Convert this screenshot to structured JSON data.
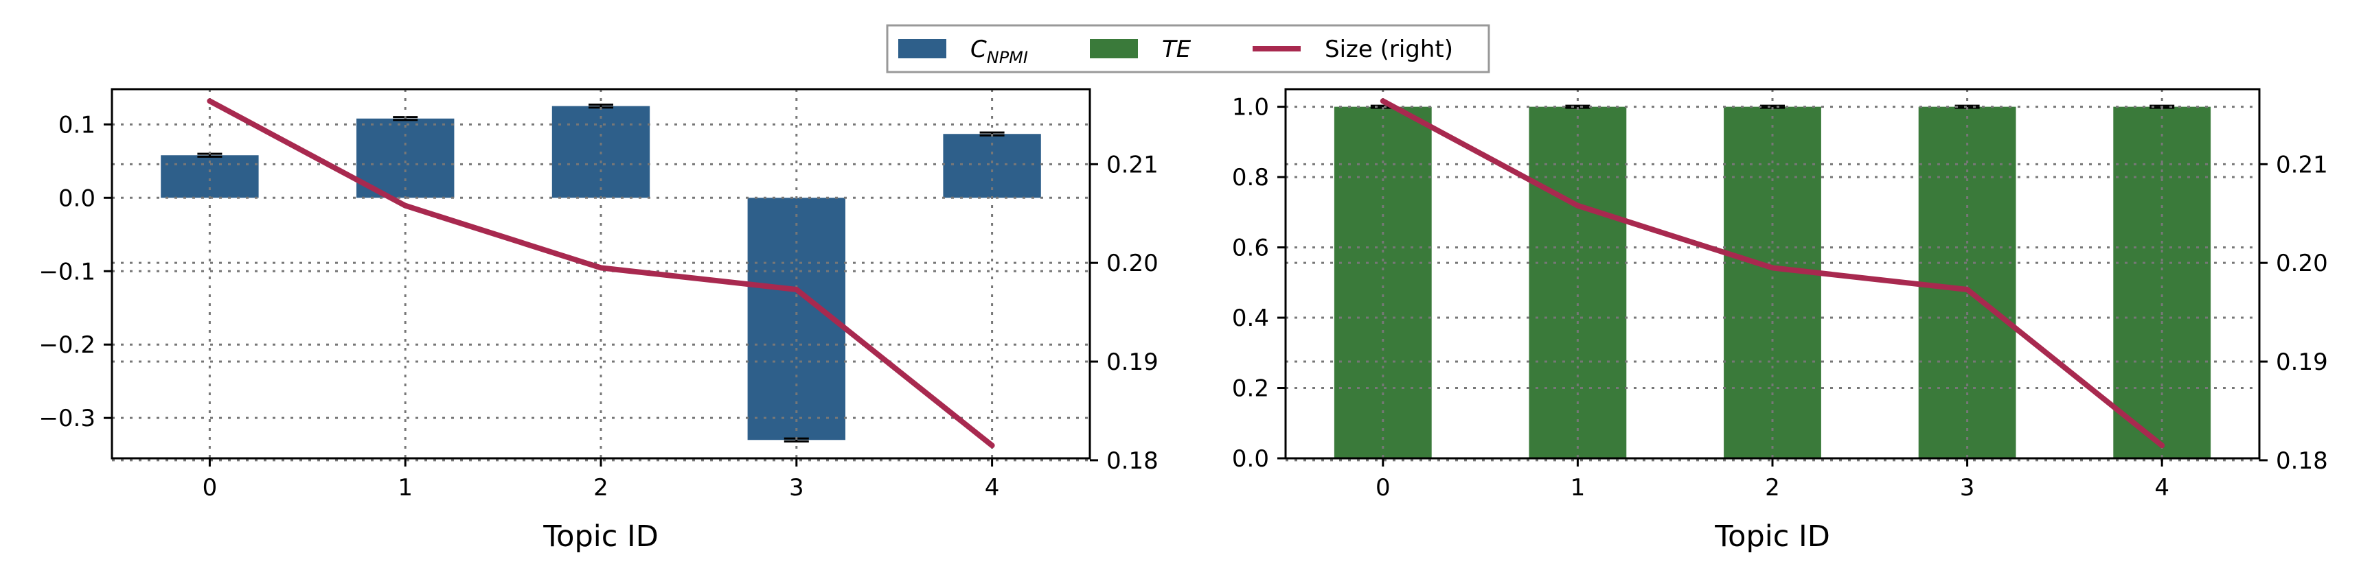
{
  "legend": {
    "placement": "top-center",
    "entries": [
      {
        "key": "cnpmi",
        "main": "C",
        "sub": "NPMI",
        "kind": "bar",
        "color": "#2e5f8a"
      },
      {
        "key": "te",
        "main": "TE",
        "sub": "",
        "kind": "bar",
        "color": "#3a7a3a"
      },
      {
        "key": "size",
        "main": "Size (right)",
        "sub": "",
        "kind": "line",
        "color": "#a8294f"
      }
    ]
  },
  "chart_data": [
    {
      "type": "bar",
      "series_key": "cnpmi",
      "bar_color": "#2e5f8a",
      "line_color": "#a8294f",
      "categories": [
        "0",
        "1",
        "2",
        "3",
        "4"
      ],
      "values": [
        0.058,
        0.108,
        0.125,
        -0.33,
        0.087
      ],
      "error": [
        0.002,
        0.002,
        0.002,
        0.002,
        0.002
      ],
      "size_values": [
        0.2164,
        0.2058,
        0.1995,
        0.1973,
        0.1815
      ],
      "xlabel": "Topic ID",
      "ylim": [
        -0.355,
        0.148
      ],
      "yticks": [
        0.1,
        0.0,
        -0.1,
        -0.2,
        -0.3
      ],
      "ytick_labels": [
        "0.1",
        "0.0",
        "−0.1",
        "−0.2",
        "−0.3"
      ],
      "y2lim": [
        0.1802,
        0.2176
      ],
      "y2ticks": [
        0.21,
        0.2,
        0.19,
        0.18
      ],
      "y2tick_labels": [
        "0.21",
        "0.20",
        "0.19",
        "0.18"
      ],
      "grid": true
    },
    {
      "type": "bar",
      "series_key": "te",
      "bar_color": "#3a7a3a",
      "line_color": "#a8294f",
      "categories": [
        "0",
        "1",
        "2",
        "3",
        "4"
      ],
      "values": [
        1.0,
        1.0,
        1.0,
        1.0,
        1.0
      ],
      "error": [
        0.003,
        0.003,
        0.003,
        0.003,
        0.003
      ],
      "size_values": [
        0.2164,
        0.2058,
        0.1995,
        0.1973,
        0.1815
      ],
      "xlabel": "Topic ID",
      "ylim": [
        0.0,
        1.05
      ],
      "yticks": [
        1.0,
        0.8,
        0.6,
        0.4,
        0.2,
        0.0
      ],
      "ytick_labels": [
        "1.0",
        "0.8",
        "0.6",
        "0.4",
        "0.2",
        "0.0"
      ],
      "y2lim": [
        0.1802,
        0.2176
      ],
      "y2ticks": [
        0.21,
        0.2,
        0.19,
        0.18
      ],
      "y2tick_labels": [
        "0.21",
        "0.20",
        "0.19",
        "0.18"
      ],
      "grid": true
    }
  ]
}
